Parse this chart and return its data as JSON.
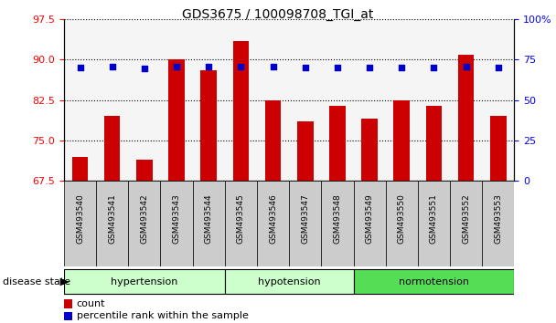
{
  "title": "GDS3675 / 100098708_TGI_at",
  "samples": [
    "GSM493540",
    "GSM493541",
    "GSM493542",
    "GSM493543",
    "GSM493544",
    "GSM493545",
    "GSM493546",
    "GSM493547",
    "GSM493548",
    "GSM493549",
    "GSM493550",
    "GSM493551",
    "GSM493552",
    "GSM493553"
  ],
  "count_values": [
    72.0,
    79.5,
    71.5,
    90.0,
    88.0,
    93.5,
    82.5,
    78.5,
    81.5,
    79.0,
    82.5,
    81.5,
    91.0,
    79.5
  ],
  "percentile_right_values": [
    70.0,
    70.5,
    69.5,
    70.5,
    70.5,
    70.5,
    70.5,
    70.0,
    70.0,
    70.0,
    70.0,
    70.0,
    70.5,
    70.0
  ],
  "groups": [
    {
      "label": "hypertension",
      "start": 0,
      "end": 5,
      "color": "#ccffcc"
    },
    {
      "label": "hypotension",
      "start": 5,
      "end": 9,
      "color": "#ccffcc"
    },
    {
      "label": "normotension",
      "start": 9,
      "end": 14,
      "color": "#44cc44"
    }
  ],
  "ylim_left": [
    67.5,
    97.5
  ],
  "ylim_right": [
    0,
    100
  ],
  "yticks_left": [
    67.5,
    75.0,
    82.5,
    90.0,
    97.5
  ],
  "yticks_right": [
    0,
    25,
    50,
    75,
    100
  ],
  "bar_color": "#cc0000",
  "dot_color": "#0000cc",
  "background_color": "#ffffff",
  "bar_width": 0.5,
  "xticklabel_bg": "#cccccc",
  "legend_bar_color": "#cc0000",
  "legend_dot_color": "#0000cc"
}
